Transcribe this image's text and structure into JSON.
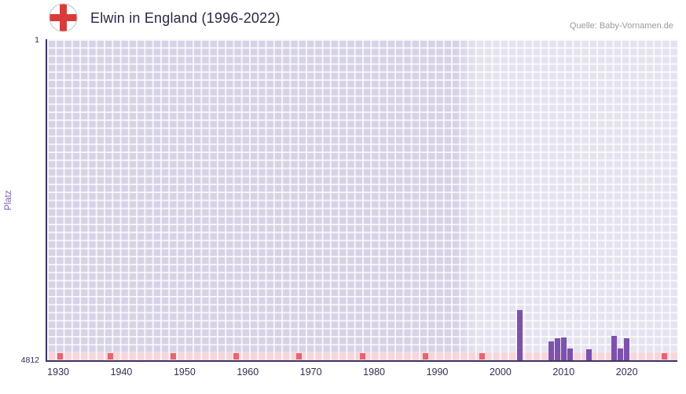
{
  "header": {
    "title": "Elwin in England (1996-2022)",
    "source": "Quelle: Baby-Vornamen.de"
  },
  "chart_data": {
    "type": "bar",
    "title": "Elwin in England (1996-2022)",
    "ylabel": "Platz",
    "xlabel": "",
    "grid": true,
    "legend": false,
    "y_axis": {
      "top_label": "1",
      "bottom_label": "4812",
      "min": 1,
      "max": 4812,
      "inverted": true
    },
    "x_axis": {
      "tick_labels": [
        "1930",
        "1940",
        "1950",
        "1960",
        "1970",
        "1980",
        "1990",
        "2000",
        "2010",
        "2020"
      ],
      "range_min": 1928,
      "range_max": 2028
    },
    "bars": [
      {
        "year": 2003,
        "rank": 4060
      },
      {
        "year": 2008,
        "rank": 4530
      },
      {
        "year": 2009,
        "rank": 4485
      },
      {
        "year": 2010,
        "rank": 4470
      },
      {
        "year": 2011,
        "rank": 4635
      },
      {
        "year": 2014,
        "rank": 4650
      },
      {
        "year": 2018,
        "rank": 4450
      },
      {
        "year": 2019,
        "rank": 4640
      },
      {
        "year": 2020,
        "rank": 4485
      }
    ],
    "highlight_region": {
      "start_year": 1993,
      "note": "lighter background band over data period"
    },
    "baseline_mark_years": [
      1930,
      1938,
      1948,
      1958,
      1968,
      1978,
      1988,
      1997,
      2026
    ],
    "colors": {
      "bar": "#7d52ad",
      "plot_bg": "#d7d2e6",
      "axis": "#3f3566",
      "tick_text": "#332d52",
      "title_text": "#2b2645",
      "ylabel_text": "#7c5fad",
      "source_text": "#9b9b9b",
      "baseline_strip": "#f6d6dc",
      "baseline_mark": "#e8646e",
      "flag_cross": "#d93b3b"
    }
  }
}
